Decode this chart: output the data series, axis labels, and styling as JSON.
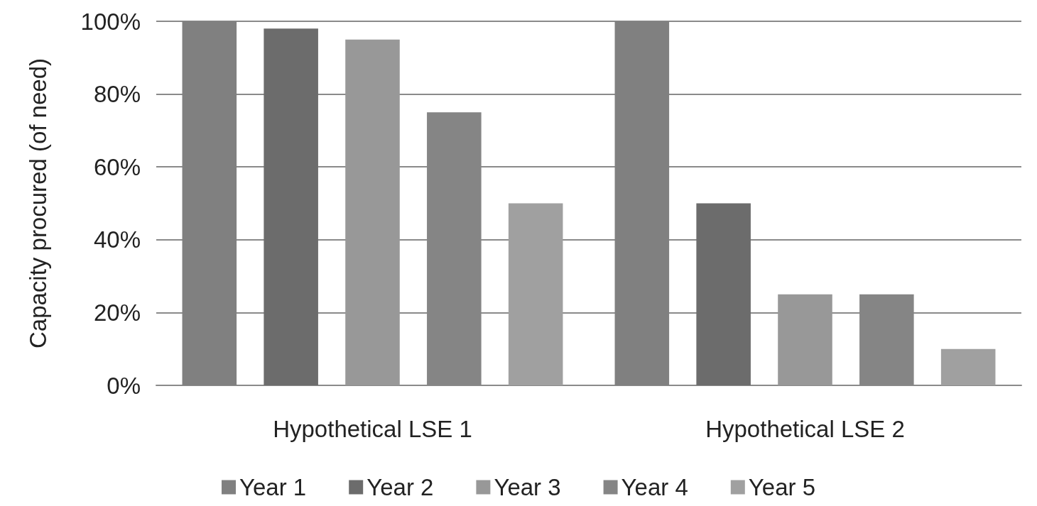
{
  "chart_data": {
    "type": "bar",
    "ylabel": "Capacity procured (of need)",
    "categories": [
      "Hypothetical LSE 1",
      "Hypothetical LSE 2"
    ],
    "series": [
      {
        "name": "Year 1",
        "color": "#808080",
        "values": [
          100,
          100
        ]
      },
      {
        "name": "Year 2",
        "color": "#6c6c6c",
        "values": [
          98,
          50
        ]
      },
      {
        "name": "Year 3",
        "color": "#989898",
        "values": [
          95,
          25
        ]
      },
      {
        "name": "Year 4",
        "color": "#858585",
        "values": [
          75,
          25
        ]
      },
      {
        "name": "Year 5",
        "color": "#a0a0a0",
        "values": [
          50,
          10
        ]
      }
    ],
    "ylim": [
      0,
      100
    ],
    "yticks": [
      {
        "value": 0,
        "label": "0%"
      },
      {
        "value": 20,
        "label": "20%"
      },
      {
        "value": 40,
        "label": "40%"
      },
      {
        "value": 60,
        "label": "60%"
      },
      {
        "value": 80,
        "label": "80%"
      },
      {
        "value": 100,
        "label": "100%"
      }
    ],
    "grid": "y",
    "legend": "bottom"
  }
}
